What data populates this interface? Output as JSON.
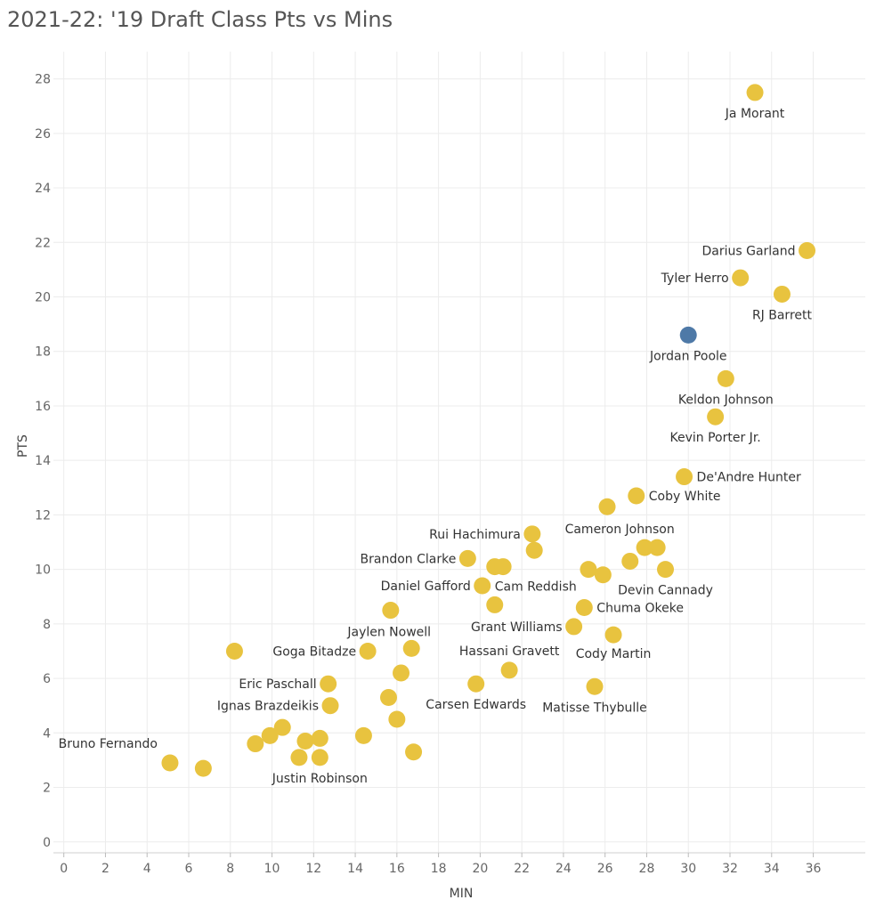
{
  "chart_data": {
    "type": "scatter",
    "title": "2021-22: '19 Draft Class Pts vs Mins",
    "xlabel": "MIN",
    "ylabel": "PTS",
    "xlim": [
      -0.5,
      38.5
    ],
    "ylim": [
      -0.4,
      29
    ],
    "x_ticks": [
      0,
      2,
      4,
      6,
      8,
      10,
      12,
      14,
      16,
      18,
      20,
      22,
      24,
      26,
      28,
      30,
      32,
      34,
      36
    ],
    "y_ticks": [
      0,
      2,
      4,
      6,
      8,
      10,
      12,
      14,
      16,
      18,
      20,
      22,
      24,
      26,
      28
    ],
    "grid": true,
    "colors": {
      "default": "#E8C33F",
      "highlight": "#4E79A7"
    },
    "points": [
      {
        "label": "Ja Morant",
        "x": 33.2,
        "y": 27.5
      },
      {
        "label": "Darius Garland",
        "x": 35.7,
        "y": 21.7
      },
      {
        "label": "Tyler Herro",
        "x": 32.5,
        "y": 20.7
      },
      {
        "label": "RJ Barrett",
        "x": 34.5,
        "y": 20.1
      },
      {
        "label": "Jordan Poole",
        "x": 30.0,
        "y": 18.6,
        "highlight": true
      },
      {
        "label": "Keldon Johnson",
        "x": 31.8,
        "y": 17.0
      },
      {
        "label": "Kevin Porter Jr.",
        "x": 31.3,
        "y": 15.6
      },
      {
        "label": "De'Andre Hunter",
        "x": 29.8,
        "y": 13.4
      },
      {
        "label": "Coby White",
        "x": 27.5,
        "y": 12.7
      },
      {
        "label": "",
        "x": 26.1,
        "y": 12.3
      },
      {
        "label": "Rui Hachimura",
        "x": 22.5,
        "y": 11.3
      },
      {
        "label": "Cameron Johnson",
        "x": 28.5,
        "y": 10.8
      },
      {
        "label": "",
        "x": 27.9,
        "y": 10.8
      },
      {
        "label": "",
        "x": 22.6,
        "y": 10.7
      },
      {
        "label": "Brandon Clarke",
        "x": 19.4,
        "y": 10.4
      },
      {
        "label": "",
        "x": 27.2,
        "y": 10.3
      },
      {
        "label": "",
        "x": 20.7,
        "y": 10.1
      },
      {
        "label": "",
        "x": 21.1,
        "y": 10.1
      },
      {
        "label": "",
        "x": 25.2,
        "y": 10.0
      },
      {
        "label": "Devin Cannady",
        "x": 28.9,
        "y": 10.0
      },
      {
        "label": "",
        "x": 25.9,
        "y": 9.8
      },
      {
        "label": "Daniel Gafford",
        "x": 20.1,
        "y": 9.4
      },
      {
        "label": "Cam Reddish",
        "x": 20.7,
        "y": 8.7
      },
      {
        "label": "Chuma Okeke",
        "x": 25.0,
        "y": 8.6
      },
      {
        "label": "",
        "x": 15.7,
        "y": 8.5
      },
      {
        "label": "Grant Williams",
        "x": 24.5,
        "y": 7.9
      },
      {
        "label": "Cody Martin",
        "x": 26.4,
        "y": 7.6
      },
      {
        "label": "Jaylen Nowell",
        "x": 16.7,
        "y": 7.1
      },
      {
        "label": "",
        "x": 8.2,
        "y": 7.0
      },
      {
        "label": "Goga Bitadze",
        "x": 14.6,
        "y": 7.0
      },
      {
        "label": "Hassani Gravett",
        "x": 21.4,
        "y": 6.3
      },
      {
        "label": "",
        "x": 16.2,
        "y": 6.2
      },
      {
        "label": "Eric Paschall",
        "x": 12.7,
        "y": 5.8
      },
      {
        "label": "Carsen Edwards",
        "x": 19.8,
        "y": 5.8
      },
      {
        "label": "Matisse Thybulle",
        "x": 25.5,
        "y": 5.7
      },
      {
        "label": "",
        "x": 15.6,
        "y": 5.3
      },
      {
        "label": "Ignas Brazdeikis",
        "x": 12.8,
        "y": 5.0
      },
      {
        "label": "",
        "x": 16.0,
        "y": 4.5
      },
      {
        "label": "",
        "x": 10.5,
        "y": 4.2
      },
      {
        "label": "",
        "x": 9.9,
        "y": 3.9
      },
      {
        "label": "",
        "x": 14.4,
        "y": 3.9
      },
      {
        "label": "",
        "x": 12.3,
        "y": 3.8
      },
      {
        "label": "",
        "x": 11.6,
        "y": 3.7
      },
      {
        "label": "",
        "x": 9.2,
        "y": 3.6
      },
      {
        "label": "",
        "x": 16.8,
        "y": 3.3
      },
      {
        "label": "",
        "x": 11.3,
        "y": 3.1
      },
      {
        "label": "Justin Robinson",
        "x": 12.3,
        "y": 3.1
      },
      {
        "label": "Bruno Fernando",
        "x": 5.1,
        "y": 2.9
      },
      {
        "label": "",
        "x": 6.7,
        "y": 2.7
      }
    ]
  }
}
